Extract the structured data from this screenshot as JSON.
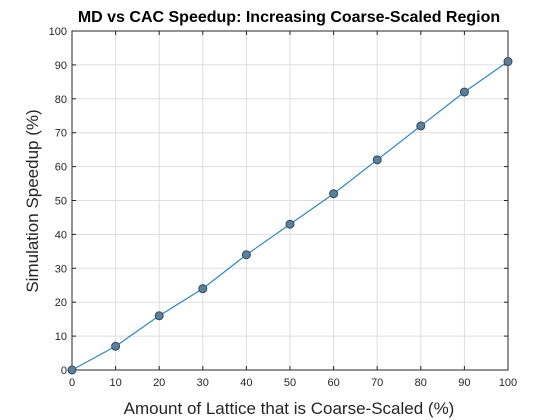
{
  "chart_data": {
    "type": "line",
    "title": "MD vs CAC Speedup: Increasing Coarse-Scaled Region",
    "xlabel": "Amount of Lattice that is Coarse-Scaled (%)",
    "ylabel": "Simulation Speedup (%)",
    "xlim": [
      0,
      100
    ],
    "ylim": [
      0,
      100
    ],
    "xticks": [
      0,
      10,
      20,
      30,
      40,
      50,
      60,
      70,
      80,
      90,
      100
    ],
    "yticks": [
      0,
      10,
      20,
      30,
      40,
      50,
      60,
      70,
      80,
      90,
      100
    ],
    "grid": true,
    "series": [
      {
        "x": [
          0,
          10,
          20,
          30,
          40,
          50,
          60,
          70,
          80,
          90,
          100
        ],
        "y": [
          0,
          7,
          16,
          24,
          34,
          43,
          52,
          62,
          72,
          82,
          91
        ],
        "line_color": "#2E86C1",
        "marker_color": "#5D7F99"
      }
    ]
  }
}
